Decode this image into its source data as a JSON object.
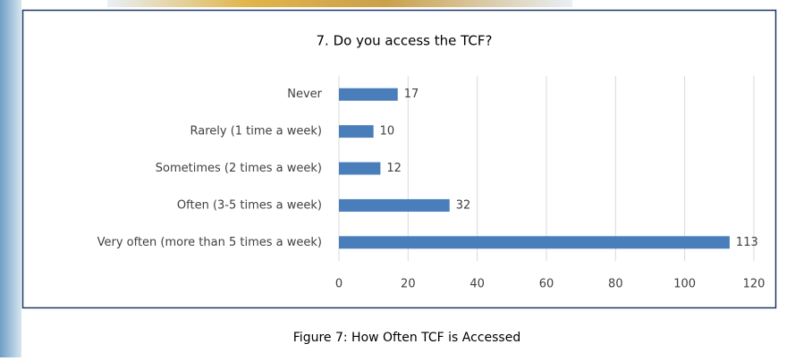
{
  "chart_data": {
    "type": "bar",
    "orientation": "horizontal",
    "title": "7.  Do you access the TCF?",
    "caption": "Figure 7:  How Often TCF is Accessed",
    "categories": [
      "Never",
      "Rarely (1 time a week)",
      "Sometimes (2 times a week)",
      "Often (3-5 times a week)",
      "Very often (more than 5 times a week)"
    ],
    "values": [
      17,
      10,
      12,
      32,
      113
    ],
    "color": "#4a7ebb",
    "xlim": [
      0,
      120
    ],
    "xticks": [
      0,
      20,
      40,
      60,
      80,
      100,
      120
    ],
    "grid": true
  }
}
